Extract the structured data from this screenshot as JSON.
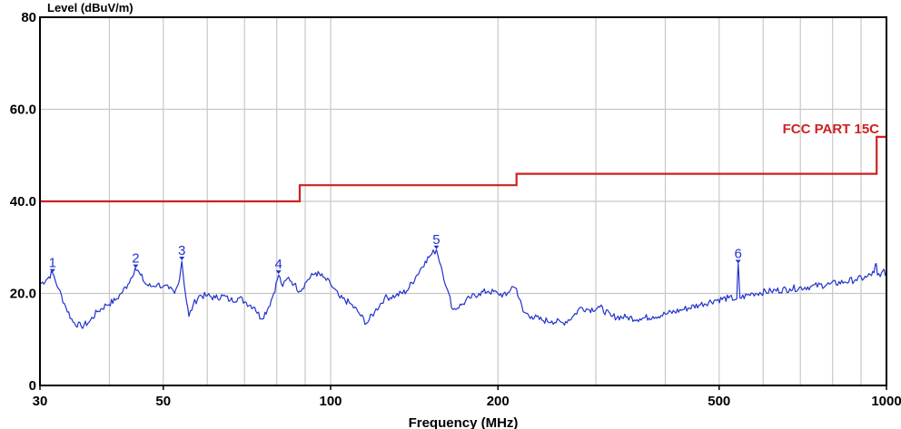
{
  "chart_data": {
    "type": "line",
    "title": "",
    "ylabel": "Level (dBuV/m)",
    "xlabel": "Frequency (MHz)",
    "x_scale": "log",
    "xlim": [
      30,
      1000
    ],
    "ylim": [
      0,
      80
    ],
    "grid": true,
    "x_ticks": [
      {
        "value": 30,
        "label": "30"
      },
      {
        "value": 50,
        "label": "50"
      },
      {
        "value": 100,
        "label": "100"
      },
      {
        "value": 200,
        "label": "200"
      },
      {
        "value": 500,
        "label": "500"
      },
      {
        "value": 1000,
        "label": "1000"
      }
    ],
    "x_minor_grid": [
      40,
      60,
      70,
      80,
      90,
      300,
      400,
      600,
      700,
      800,
      900
    ],
    "y_ticks": [
      {
        "value": 0,
        "label": "0"
      },
      {
        "value": 20,
        "label": "20.0"
      },
      {
        "value": 40,
        "label": "40.0"
      },
      {
        "value": 60,
        "label": "60.0"
      },
      {
        "value": 80,
        "label": "80"
      }
    ],
    "limit_line": {
      "name": "FCC PART 15C",
      "color": "#cc2222",
      "points": [
        [
          30,
          40
        ],
        [
          88,
          40
        ],
        [
          88,
          43.5
        ],
        [
          216,
          43.5
        ],
        [
          216,
          46
        ],
        [
          960,
          46
        ],
        [
          960,
          54
        ],
        [
          1000,
          54
        ]
      ]
    },
    "series": [
      {
        "color": "#2233cc",
        "points": [
          [
            30,
            22
          ],
          [
            30.8,
            23
          ],
          [
            31.6,
            24.5
          ],
          [
            32.4,
            21
          ],
          [
            33.4,
            17
          ],
          [
            34.4,
            13.8
          ],
          [
            35.6,
            12.8
          ],
          [
            36.8,
            13.8
          ],
          [
            38,
            16
          ],
          [
            39.5,
            17.5
          ],
          [
            41,
            18.5
          ],
          [
            42,
            20
          ],
          [
            43.2,
            22
          ],
          [
            44.5,
            25.5
          ],
          [
            45.5,
            24
          ],
          [
            46.5,
            22
          ],
          [
            47.5,
            21.5
          ],
          [
            48.8,
            22
          ],
          [
            50,
            21.5
          ],
          [
            51.2,
            21
          ],
          [
            52.4,
            20
          ],
          [
            53.2,
            22
          ],
          [
            54,
            27
          ],
          [
            54.8,
            20
          ],
          [
            55.6,
            15
          ],
          [
            56.6,
            17.5
          ],
          [
            58,
            19.5
          ],
          [
            60,
            19.5
          ],
          [
            62,
            19
          ],
          [
            64,
            19.5
          ],
          [
            66,
            18.5
          ],
          [
            68.5,
            19
          ],
          [
            70.5,
            18
          ],
          [
            73,
            17
          ],
          [
            75,
            14.5
          ],
          [
            77,
            16.5
          ],
          [
            79,
            20
          ],
          [
            80.6,
            24
          ],
          [
            82,
            21.5
          ],
          [
            84,
            23.5
          ],
          [
            86,
            22
          ],
          [
            88,
            20.5
          ],
          [
            91,
            23
          ],
          [
            94,
            24.5
          ],
          [
            97,
            23.5
          ],
          [
            100,
            22
          ],
          [
            104,
            19
          ],
          [
            108,
            18
          ],
          [
            112,
            16
          ],
          [
            116,
            13.5
          ],
          [
            120,
            16
          ],
          [
            125,
            19
          ],
          [
            131,
            19.5
          ],
          [
            137,
            20.5
          ],
          [
            143,
            24
          ],
          [
            148,
            27
          ],
          [
            152,
            28.5
          ],
          [
            155,
            29.5
          ],
          [
            158,
            26
          ],
          [
            162,
            21
          ],
          [
            166,
            16.5
          ],
          [
            172,
            17.5
          ],
          [
            178,
            19
          ],
          [
            185,
            20
          ],
          [
            192,
            20.5
          ],
          [
            200,
            20
          ],
          [
            207,
            19.5
          ],
          [
            212,
            21.5
          ],
          [
            216,
            21
          ],
          [
            222,
            16
          ],
          [
            230,
            15
          ],
          [
            240,
            14.2
          ],
          [
            250,
            14
          ],
          [
            262,
            13.6
          ],
          [
            272,
            14.8
          ],
          [
            282,
            17
          ],
          [
            292,
            16.5
          ],
          [
            305,
            17
          ],
          [
            320,
            15
          ],
          [
            340,
            14.8
          ],
          [
            360,
            14.5
          ],
          [
            380,
            15
          ],
          [
            400,
            15.5
          ],
          [
            430,
            16.5
          ],
          [
            460,
            17.5
          ],
          [
            490,
            18.5
          ],
          [
            520,
            19
          ],
          [
            538,
            18.8
          ],
          [
            541,
            26.5
          ],
          [
            545,
            19
          ],
          [
            575,
            20
          ],
          [
            620,
            20.5
          ],
          [
            670,
            21
          ],
          [
            730,
            21.5
          ],
          [
            790,
            22
          ],
          [
            840,
            22.5
          ],
          [
            880,
            23
          ],
          [
            920,
            23.5
          ],
          [
            950,
            24.5
          ],
          [
            958,
            26.5
          ],
          [
            963,
            24
          ],
          [
            980,
            24.5
          ],
          [
            1000,
            24.5
          ]
        ]
      }
    ],
    "markers": [
      {
        "label": "1",
        "x": 31.6,
        "y": 24.5
      },
      {
        "label": "2",
        "x": 44.6,
        "y": 25.5
      },
      {
        "label": "3",
        "x": 54,
        "y": 27.2
      },
      {
        "label": "4",
        "x": 80.6,
        "y": 24.2
      },
      {
        "label": "5",
        "x": 155,
        "y": 29.6
      },
      {
        "label": "6",
        "x": 541,
        "y": 26.5
      }
    ]
  }
}
